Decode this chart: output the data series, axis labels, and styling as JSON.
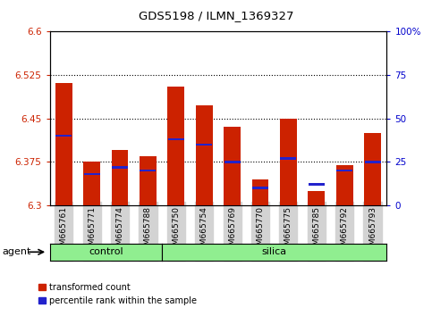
{
  "title": "GDS5198 / ILMN_1369327",
  "samples": [
    "GSM665761",
    "GSM665771",
    "GSM665774",
    "GSM665788",
    "GSM665750",
    "GSM665754",
    "GSM665769",
    "GSM665770",
    "GSM665775",
    "GSM665785",
    "GSM665792",
    "GSM665793"
  ],
  "groups": [
    "control",
    "control",
    "control",
    "control",
    "silica",
    "silica",
    "silica",
    "silica",
    "silica",
    "silica",
    "silica",
    "silica"
  ],
  "transformed_count": [
    6.512,
    6.375,
    6.395,
    6.385,
    6.505,
    6.473,
    6.435,
    6.345,
    6.45,
    6.325,
    6.37,
    6.425
  ],
  "percentile_rank": [
    40,
    18,
    22,
    20,
    38,
    35,
    25,
    10,
    27,
    12,
    20,
    25
  ],
  "ylim_left": [
    6.3,
    6.6
  ],
  "ylim_right": [
    0,
    100
  ],
  "yticks_left": [
    6.3,
    6.375,
    6.45,
    6.525,
    6.6
  ],
  "yticks_right": [
    0,
    25,
    50,
    75,
    100
  ],
  "ytick_labels_left": [
    "6.3",
    "6.375",
    "6.45",
    "6.525",
    "6.6"
  ],
  "ytick_labels_right": [
    "0",
    "25",
    "50",
    "75",
    "100%"
  ],
  "hlines": [
    6.375,
    6.45,
    6.525
  ],
  "bar_color_red": "#cc2200",
  "bar_color_blue": "#2222cc",
  "bar_width": 0.6,
  "legend_red": "transformed count",
  "legend_blue": "percentile rank within the sample",
  "left_axis_color": "#cc2200",
  "right_axis_color": "#0000cc",
  "n_control": 4,
  "n_silica": 8,
  "group_color": "#90EE90"
}
